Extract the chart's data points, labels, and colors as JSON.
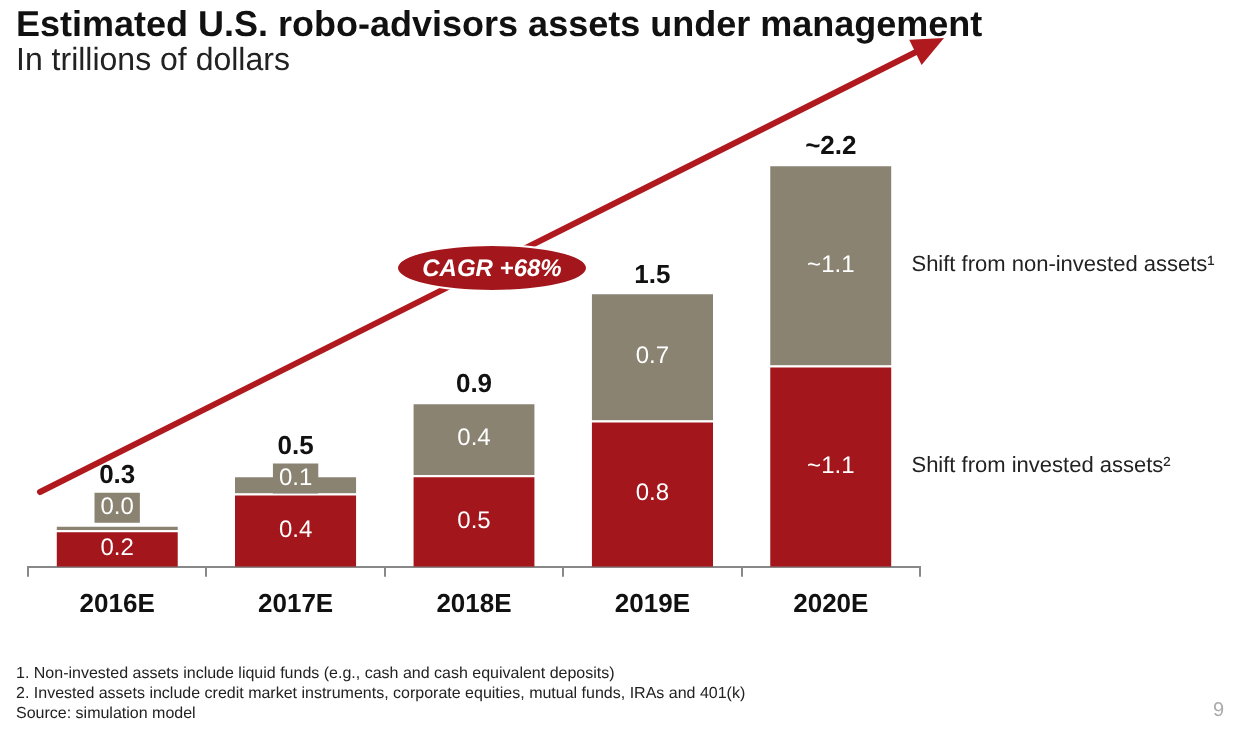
{
  "chart_data": {
    "type": "bar",
    "title": "Estimated U.S. robo-advisors assets under management",
    "subtitle": "In trillions of dollars",
    "categories": [
      "2016E",
      "2017E",
      "2018E",
      "2019E",
      "2020E"
    ],
    "stacked": true,
    "grid": false,
    "legend": false,
    "tick_labels": "x",
    "series": [
      {
        "name": "Shift from invested assets²",
        "color": "#a3161b",
        "values": [
          0.2,
          0.4,
          0.5,
          0.8,
          1.1
        ],
        "value_labels": [
          "0.2",
          "0.4",
          "0.5",
          "0.8",
          "~1.1"
        ]
      },
      {
        "name": "Shift from non-invested assets¹",
        "color": "#8a8372",
        "values": [
          0.03,
          0.1,
          0.4,
          0.7,
          1.1
        ],
        "value_labels": [
          "0.0",
          "0.1",
          "0.4",
          "0.7",
          "~1.1"
        ]
      }
    ],
    "totals": [
      "0.3",
      "0.5",
      "0.9",
      "1.5",
      "~2.2"
    ],
    "annotations": [
      "CAGR +68%",
      "1. Non-invested assets include liquid funds (e.g., cash and cash equivalent deposits)",
      "2. Invested assets include credit market instruments, corporate equities, mutual funds, IRAs and 401(k)",
      "Source: simulation model",
      "9"
    ]
  }
}
